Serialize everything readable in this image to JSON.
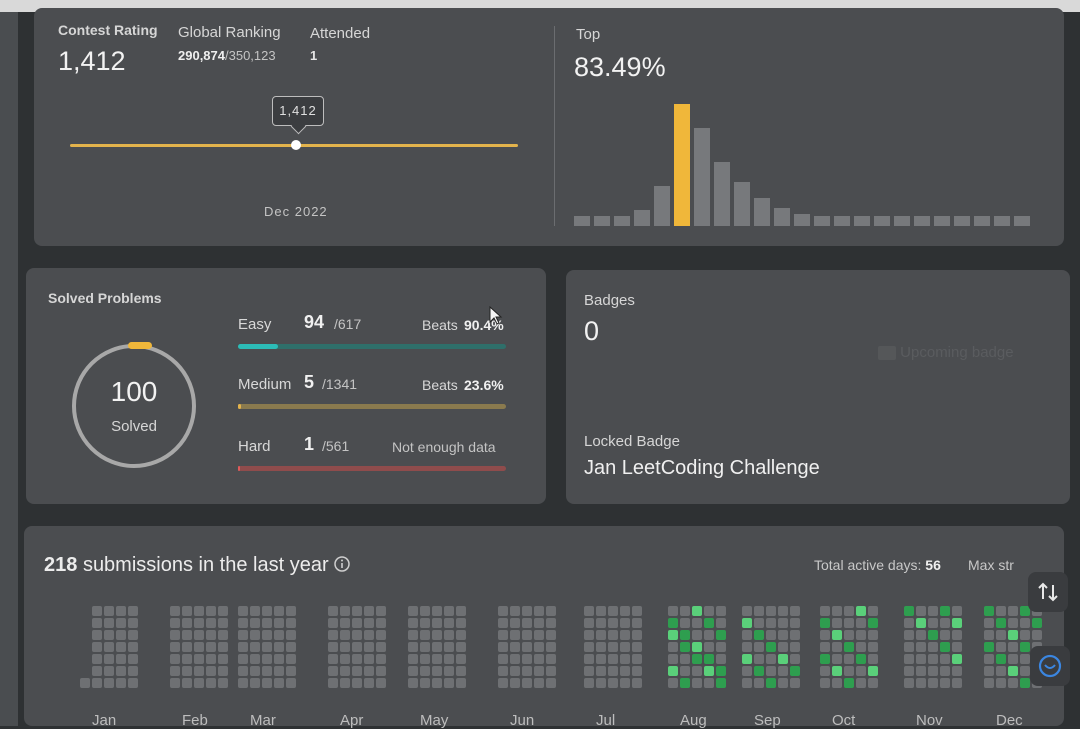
{
  "contest": {
    "rating_label": "Contest Rating",
    "rating_value": "1,412",
    "global_ranking_label": "Global Ranking",
    "global_ranking_value": "290,874",
    "global_ranking_total": "/350,123",
    "attended_label": "Attended",
    "attended_value": "1",
    "tooltip": "1,412",
    "date_label": "Dec 2022",
    "top_label": "Top",
    "top_value": "83.49%"
  },
  "solved": {
    "title": "Solved Problems",
    "total": "100",
    "total_label": "Solved",
    "rows": [
      {
        "level": "Easy",
        "solved": "94",
        "total": "/617",
        "beats_label": "Beats",
        "beats_value": "90.4%",
        "color": "#2cbcb7",
        "fraction": 0.152
      },
      {
        "level": "Medium",
        "solved": "5",
        "total": "/1341",
        "beats_label": "Beats",
        "beats_value": "23.6%",
        "color": "#e3b34c",
        "fraction": 0.004
      },
      {
        "level": "Hard",
        "solved": "1",
        "total": "/561",
        "note": "Not enough data",
        "color": "#e05a5a",
        "fraction": 0.002
      }
    ]
  },
  "badges": {
    "title": "Badges",
    "count": "0",
    "upcoming": "Upcoming badge",
    "locked_label": "Locked Badge",
    "locked_name": "Jan LeetCoding Challenge"
  },
  "submissions": {
    "count": "218",
    "text": "submissions in the last year",
    "active_days_label": "Total active days:",
    "active_days_value": "56",
    "max_streak_label": "Max str",
    "months": [
      "Jan",
      "Feb",
      "Mar",
      "Apr",
      "May",
      "Jun",
      "Jul",
      "Aug",
      "Sep",
      "Oct",
      "Nov",
      "Dec"
    ]
  },
  "colors": {
    "accent": "#f0b73a",
    "green": "#2e9e4f",
    "cell_empty": "#6e7073"
  },
  "icons": [
    "info-icon",
    "switch-icon",
    "chat-icon",
    "cursor-icon"
  ]
}
